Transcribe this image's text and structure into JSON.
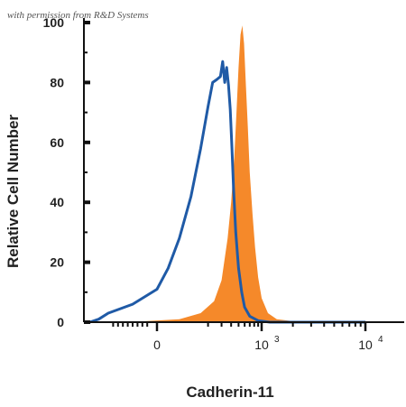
{
  "watermark": "with permission from R&D Systems",
  "chart_data": {
    "type": "area",
    "title": "",
    "xlabel": "Cadherin-11",
    "ylabel": "Relative Cell Number",
    "x_scale": "biexponential",
    "x_ticks": [
      {
        "value": 0,
        "base": "0",
        "exp": ""
      },
      {
        "value": 1000,
        "base": "10",
        "exp": "3"
      },
      {
        "value": 10000,
        "base": "10",
        "exp": "4"
      }
    ],
    "ylim": [
      0,
      100
    ],
    "y_ticks": [
      0,
      20,
      40,
      60,
      80,
      100
    ],
    "grid": false,
    "legend": "none",
    "series": [
      {
        "style": "filled",
        "color": "#f5892a",
        "x": [
          -60,
          80,
          160,
          240,
          300,
          360,
          400,
          440,
          470,
          500,
          530,
          560,
          590,
          620,
          660,
          700,
          760,
          820,
          900,
          1000,
          1150,
          1400,
          1800,
          2500,
          10000
        ],
        "y": [
          0,
          1,
          3,
          7,
          14,
          28,
          40,
          55,
          70,
          85,
          96,
          99,
          93,
          80,
          65,
          50,
          36,
          25,
          15,
          8,
          3,
          1,
          0.5,
          0,
          0
        ]
      },
      {
        "style": "outline",
        "color": "#1f5aa6",
        "x": [
          -220,
          -150,
          -100,
          -50,
          0,
          40,
          80,
          120,
          160,
          200,
          230,
          260,
          290,
          310,
          330,
          350,
          370,
          390,
          410,
          430,
          460,
          500,
          550,
          600,
          700,
          900,
          1200,
          10000
        ],
        "y": [
          0,
          1,
          3,
          6,
          11,
          18,
          28,
          42,
          58,
          72,
          80,
          81,
          82,
          87,
          80,
          85,
          79,
          71,
          58,
          45,
          30,
          18,
          10,
          5,
          2,
          0.5,
          0,
          0
        ]
      }
    ]
  }
}
